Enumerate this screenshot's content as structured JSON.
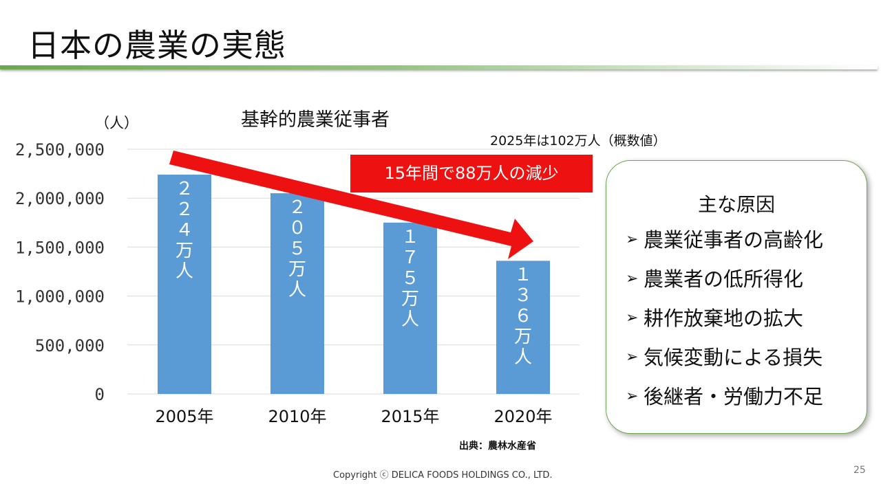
{
  "slide": {
    "title": "日本の農業の実態",
    "page_number": "25",
    "copyright": "Copyright ⓒ DELICA FOODS HOLDINGS CO., LTD.",
    "source": "出典：農林水産省",
    "note": "2025年は102万人（概数値）",
    "callout": "15年間で88万人の減少",
    "y_unit": "（人）"
  },
  "chart_data": {
    "type": "bar",
    "title": "基幹的農業従事者",
    "ylabel": "（人）",
    "xlabel": "",
    "categories": [
      "2005年",
      "2010年",
      "2015年",
      "2020年"
    ],
    "values": [
      2240000,
      2050000,
      1750000,
      1360000
    ],
    "data_labels": [
      "２２４万人",
      "２０５万人",
      "１７５万人",
      "１３６万人"
    ],
    "ylim": [
      0,
      2500000
    ],
    "yticks": [
      0,
      500000,
      1000000,
      1500000,
      2000000,
      2500000
    ],
    "ytick_labels": [
      "0",
      "500,000",
      "1,000,000",
      "1,500,000",
      "2,000,000",
      "2,500,000"
    ],
    "grid": true,
    "bar_color": "#5b9bd5",
    "trend_arrow_color": "#ee1111"
  },
  "reasons_box": {
    "heading": "主な原因",
    "bullet_icon": "arrow-bullet-icon",
    "items": [
      "農業従事者の高齢化",
      "農業者の低所得化",
      "耕作放棄地の拡大",
      "気候変動による損失",
      "後継者・労働力不足"
    ]
  },
  "colors": {
    "accent_green": "#6aa84f",
    "callout_red": "#ee1111"
  }
}
